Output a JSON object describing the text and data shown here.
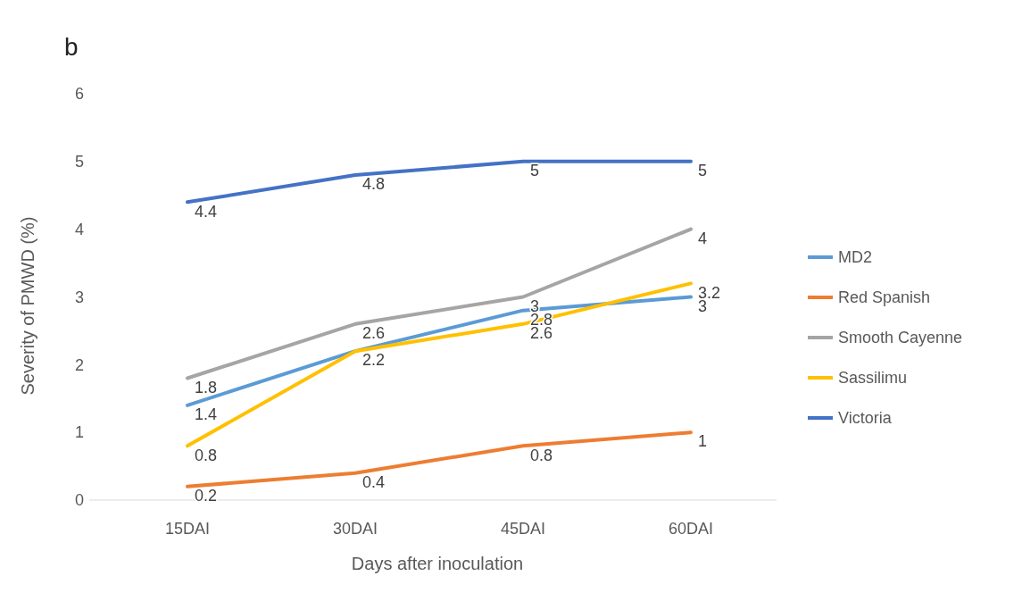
{
  "chart_data": {
    "type": "line",
    "title": "b",
    "xlabel": "Days after inoculation",
    "ylabel": "Severity of PMWD (%)",
    "categories": [
      "15DAI",
      "30DAI",
      "45DAI",
      "60DAI"
    ],
    "series": [
      {
        "name": "MD2",
        "color": "#5b9bd5",
        "values": [
          1.4,
          2.2,
          2.8,
          3
        ],
        "value_labels": [
          "1.4",
          null,
          "2.8",
          "3"
        ]
      },
      {
        "name": "Red Spanish",
        "color": "#ed7d31",
        "values": [
          0.2,
          0.4,
          0.8,
          1
        ],
        "value_labels": [
          "0.2",
          "0.4",
          "0.8",
          "1"
        ]
      },
      {
        "name": "Smooth Cayenne",
        "color": "#a5a5a5",
        "values": [
          1.8,
          2.6,
          3,
          4
        ],
        "value_labels": [
          "1.8",
          "2.6",
          "3",
          "4"
        ]
      },
      {
        "name": "Sassilimu",
        "color": "#ffc000",
        "values": [
          0.8,
          2.2,
          2.6,
          3.2
        ],
        "value_labels": [
          "0.8",
          "2.2",
          "2.6",
          "3.2"
        ]
      },
      {
        "name": "Victoria",
        "color": "#4472c4",
        "values": [
          4.4,
          4.8,
          5,
          5
        ],
        "value_labels": [
          "4.4",
          "4.8",
          "5",
          "5"
        ]
      }
    ],
    "ylim": [
      0,
      6
    ],
    "yticks": [
      0,
      1,
      2,
      3,
      4,
      5,
      6
    ],
    "legend": "right",
    "marker": "none",
    "line_style": "solid"
  }
}
